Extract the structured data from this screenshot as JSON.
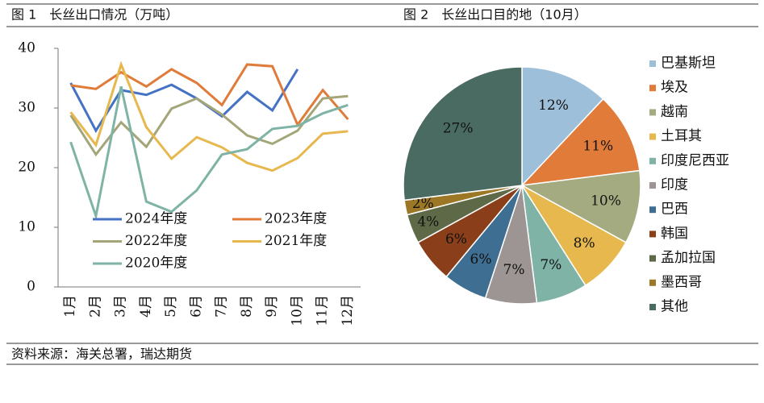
{
  "chart_data": [
    {
      "type": "line",
      "title": "图 1　长丝出口情况（万吨）",
      "categories": [
        "1月",
        "2月",
        "3月",
        "4月",
        "5月",
        "6月",
        "7月",
        "8月",
        "9月",
        "10月",
        "11月",
        "12月"
      ],
      "series": [
        {
          "name": "2024年度",
          "color": "#4472c4",
          "values": [
            34.2,
            26.2,
            33,
            32.2,
            33.9,
            31.6,
            28.6,
            32.7,
            29.6,
            36.5,
            null,
            null
          ]
        },
        {
          "name": "2023年度",
          "color": "#e07b39",
          "values": [
            33.8,
            33.2,
            36,
            33.6,
            36.5,
            34.2,
            30.5,
            37.3,
            37,
            27.2,
            33,
            28.1
          ]
        },
        {
          "name": "2022年度",
          "color": "#a5a57a",
          "values": [
            28.8,
            22.2,
            27.6,
            23.5,
            29.9,
            31.6,
            28.9,
            25.4,
            24,
            26.2,
            31.6,
            32
          ]
        },
        {
          "name": "2021年度",
          "color": "#e6b84e",
          "values": [
            29.3,
            23.8,
            37.3,
            26.8,
            21.5,
            25.1,
            23.4,
            20.8,
            19.5,
            21.6,
            25.7,
            26.1
          ]
        },
        {
          "name": "2020年度",
          "color": "#7fb3a6",
          "values": [
            24.3,
            11.9,
            33.6,
            14.3,
            12.6,
            16.2,
            22.2,
            23.1,
            26.5,
            27,
            29.1,
            30.5
          ]
        }
      ],
      "ylim": [
        0,
        40
      ],
      "yticks": [
        0,
        10,
        20,
        30,
        40
      ],
      "grid": false,
      "legend": "lower-left"
    },
    {
      "type": "pie",
      "title": "图 2　长丝出口目的地（10月）",
      "categories": [
        "巴基斯坦",
        "埃及",
        "越南",
        "土耳其",
        "印度尼西亚",
        "印度",
        "巴西",
        "韩国",
        "孟加拉国",
        "墨西哥",
        "其他"
      ],
      "values": [
        12,
        11,
        10,
        8,
        7,
        7,
        6,
        6,
        4,
        2,
        27
      ],
      "value_labels": [
        "12%",
        "11%",
        "10%",
        "8%",
        "7%",
        "7%",
        "6%",
        "6%",
        "4%",
        "2%",
        "27%"
      ],
      "colors": [
        "#9dbfd9",
        "#e07b39",
        "#a5ab80",
        "#e6b84e",
        "#7fb3a6",
        "#9c9593",
        "#3e6e91",
        "#8a3f1a",
        "#5e6a47",
        "#9c7726",
        "#4a6b61"
      ],
      "legend": "right"
    }
  ],
  "source": "资料来源：海关总署，瑞达期货"
}
